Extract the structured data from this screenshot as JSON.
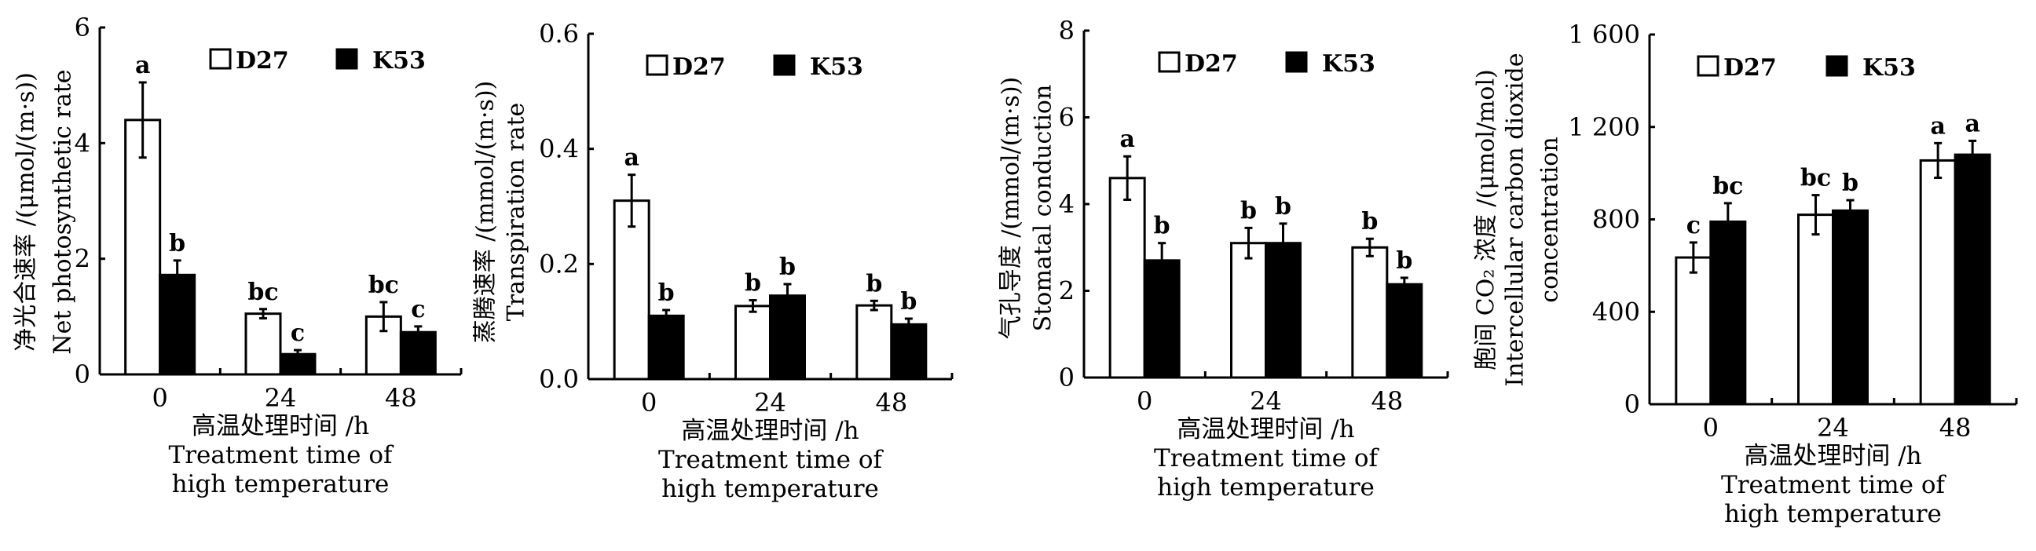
{
  "chart_data": [
    {
      "type": "bar",
      "ylabel": [
        "净光合速率 /(μmol/(m·s))",
        "Net photosynthetic rate"
      ],
      "xlabel": [
        "高温处理时间 /h",
        "Treatment time of",
        "high temperature"
      ],
      "categories": [
        "0",
        "24",
        "48"
      ],
      "yticks": [
        "0",
        "2",
        "4",
        "6"
      ],
      "ylim": [
        0,
        6
      ],
      "legend": [
        "D27",
        "K53"
      ],
      "series": [
        {
          "name": "D27",
          "values": [
            4.4,
            1.05,
            1.0
          ],
          "errors": [
            0.65,
            0.08,
            0.25
          ],
          "letters": [
            "a",
            "bc",
            "bc"
          ]
        },
        {
          "name": "K53",
          "values": [
            1.72,
            0.35,
            0.73
          ],
          "errors": [
            0.25,
            0.07,
            0.1
          ],
          "letters": [
            "b",
            "c",
            "c"
          ]
        }
      ]
    },
    {
      "type": "bar",
      "ylabel": [
        "蒸腾速率 /(mmol/(m·s))",
        "Transpiration rate"
      ],
      "xlabel": [
        "高温处理时间 /h",
        "Treatment time of",
        "high temperature"
      ],
      "categories": [
        "0",
        "24",
        "48"
      ],
      "yticks": [
        "0.0",
        "0.2",
        "0.4",
        "0.6"
      ],
      "ylim": [
        0,
        0.6
      ],
      "legend": [
        "D27",
        "K53"
      ],
      "series": [
        {
          "name": "D27",
          "values": [
            0.31,
            0.127,
            0.128
          ],
          "errors": [
            0.045,
            0.01,
            0.008
          ],
          "letters": [
            "a",
            "b",
            "b"
          ]
        },
        {
          "name": "K53",
          "values": [
            0.11,
            0.145,
            0.095
          ],
          "errors": [
            0.01,
            0.02,
            0.01
          ],
          "letters": [
            "b",
            "b",
            "b"
          ]
        }
      ]
    },
    {
      "type": "bar",
      "ylabel": [
        "气孔导度 /(mmol/(m·s))",
        "Stomatal conduction"
      ],
      "xlabel": [
        "高温处理时间 /h",
        "Treatment time of",
        "high temperature"
      ],
      "categories": [
        "0",
        "24",
        "48"
      ],
      "yticks": [
        "0",
        "2",
        "4",
        "6",
        "8"
      ],
      "ylim": [
        0,
        8
      ],
      "legend": [
        "D27",
        "K53"
      ],
      "series": [
        {
          "name": "D27",
          "values": [
            4.6,
            3.1,
            3.0
          ],
          "errors": [
            0.5,
            0.35,
            0.2
          ],
          "letters": [
            "a",
            "b",
            "b"
          ]
        },
        {
          "name": "K53",
          "values": [
            2.7,
            3.1,
            2.15
          ],
          "errors": [
            0.4,
            0.45,
            0.15
          ],
          "letters": [
            "b",
            "b",
            "b"
          ]
        }
      ]
    },
    {
      "type": "bar",
      "ylabel": [
        "胞间 CO₂ 浓度 /(μmol/mol)",
        "Intercellular carbon dioxide",
        "concentration"
      ],
      "xlabel": [
        "高温处理时间 /h",
        "Treatment time of",
        "high temperature"
      ],
      "categories": [
        "0",
        "24",
        "48"
      ],
      "yticks": [
        "0",
        "400",
        "800",
        "1 200",
        "1 600"
      ],
      "ylim": [
        0,
        1600
      ],
      "legend": [
        "D27",
        "K53"
      ],
      "series": [
        {
          "name": "D27",
          "values": [
            635,
            820,
            1055
          ],
          "errors": [
            65,
            85,
            75
          ],
          "letters": [
            "c",
            "bc",
            "a"
          ]
        },
        {
          "name": "K53",
          "values": [
            790,
            838,
            1080
          ],
          "errors": [
            80,
            45,
            60
          ],
          "letters": [
            "bc",
            "b",
            "a"
          ]
        }
      ]
    }
  ]
}
